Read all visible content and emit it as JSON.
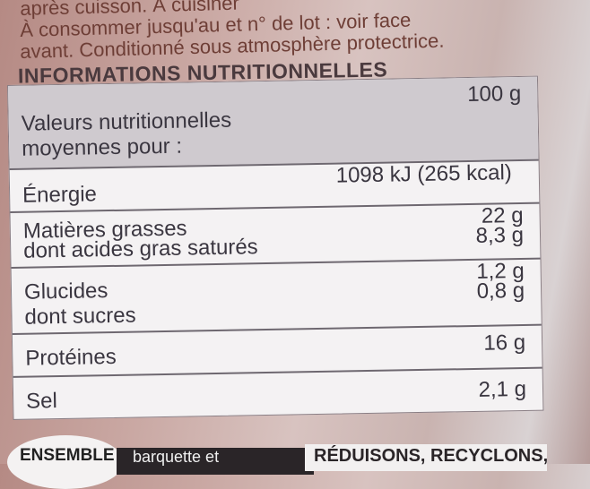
{
  "pack_text": {
    "line1": "après cuisson. À cuisiner",
    "line2": "À consommer jusqu'au et n° de lot : voir face",
    "line3": "avant. Conditionné sous atmosphère protectrice."
  },
  "section_title": "INFORMATIONS NUTRITIONNELLES",
  "table": {
    "header": {
      "label_line1": "Valeurs nutritionnelles",
      "label_line2": "moyennes pour :",
      "value": "100 g"
    },
    "rows": [
      {
        "label": "Énergie",
        "value": "1098 kJ (265 kcal)"
      },
      {
        "label": "Matières grasses",
        "value": "22 g",
        "sub_label": "dont acides gras saturés",
        "sub_value": "8,3 g"
      },
      {
        "label": "Glucides",
        "value": "1,2 g",
        "sub_label": "dont sucres",
        "sub_value": "0,8 g"
      },
      {
        "label": "Protéines",
        "value": "16 g"
      },
      {
        "label": "Sel",
        "value": "2,1 g"
      }
    ]
  },
  "recycling": {
    "ensemble": "ENSEMBLE",
    "item": "barquette et",
    "slogan": "RÉDUISONS, RECYCLONS,"
  }
}
